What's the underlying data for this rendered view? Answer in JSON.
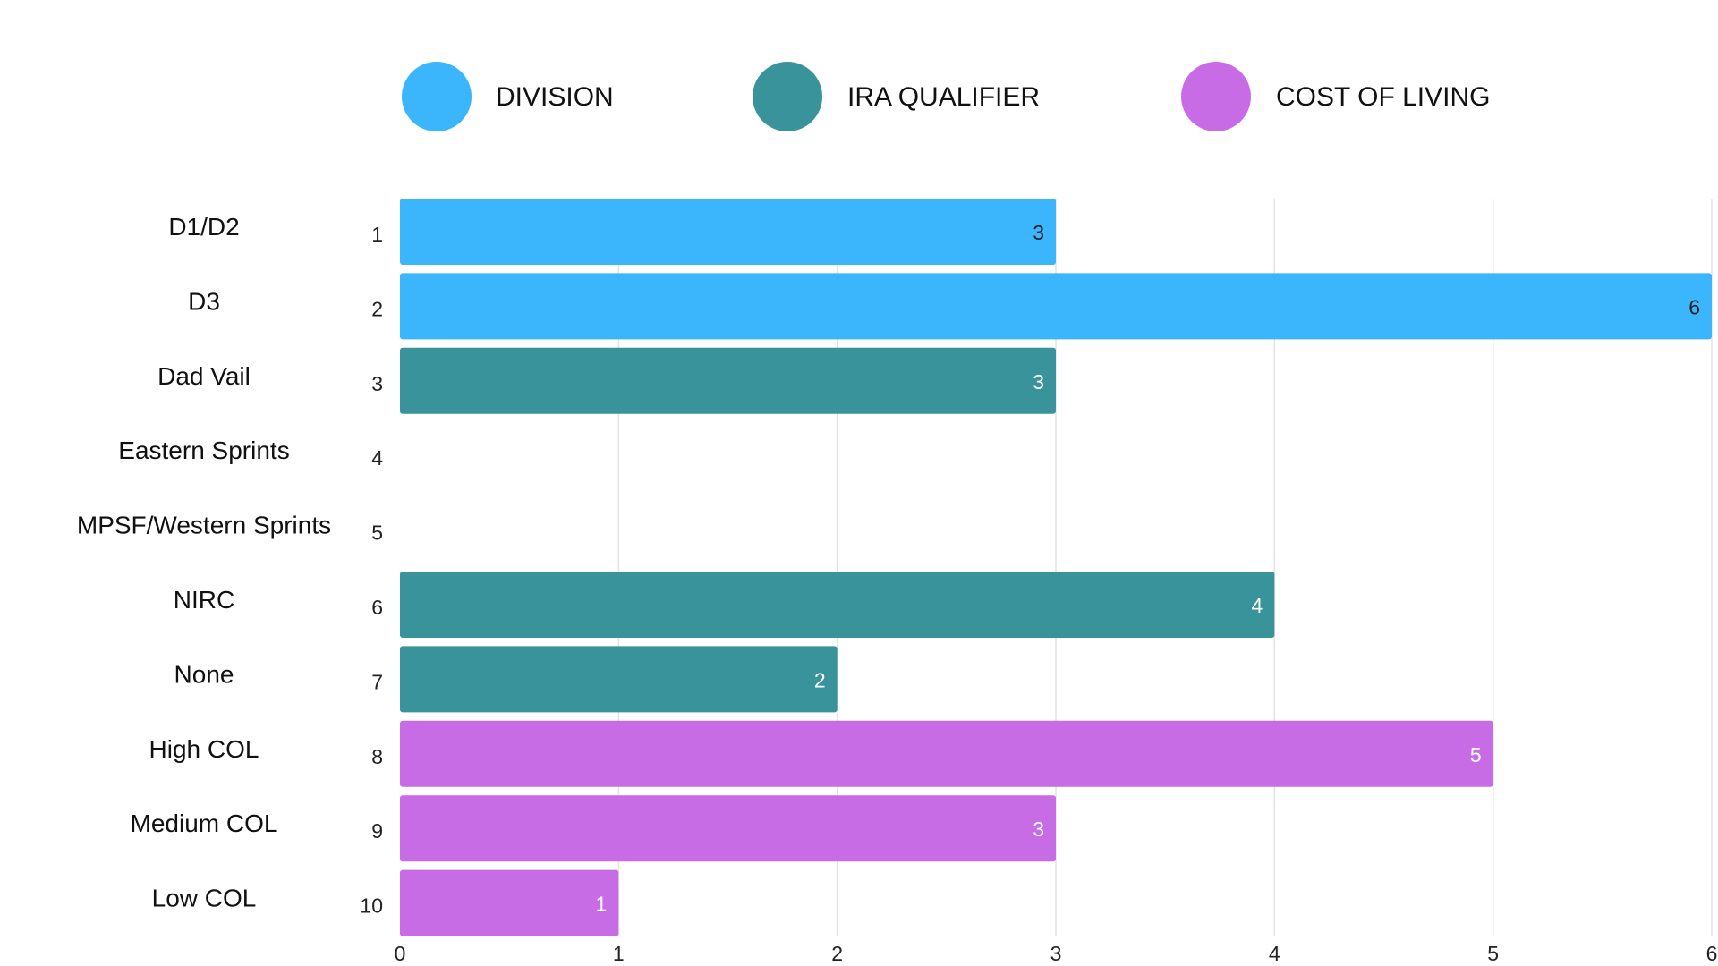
{
  "chart_data": {
    "type": "bar",
    "orientation": "horizontal",
    "legend": [
      {
        "name": "DIVISION",
        "color": "#3BB5FC"
      },
      {
        "name": "IRA QUALIFIER",
        "color": "#38939A"
      },
      {
        "name": "COST OF LIVING",
        "color": "#C86CE6"
      }
    ],
    "categories": [
      "D1/D2",
      "D3",
      "Dad Vail",
      "Eastern Sprints",
      "MPSF/Western Sprints",
      "NIRC",
      "None",
      "High COL",
      "Medium COL",
      "Low COL"
    ],
    "row_numbers": [
      "1",
      "2",
      "3",
      "4",
      "5",
      "6",
      "7",
      "8",
      "9",
      "10"
    ],
    "values": [
      3,
      6,
      3,
      0,
      0,
      4,
      2,
      5,
      3,
      1
    ],
    "series_index": [
      0,
      0,
      1,
      1,
      1,
      1,
      1,
      2,
      2,
      2
    ],
    "value_label_colors": [
      "#222222",
      "#222222",
      "#ffffff",
      "#ffffff",
      "#ffffff",
      "#ffffff",
      "#ffffff",
      "#ffffff",
      "#ffffff",
      "#ffffff"
    ],
    "xlim": [
      0,
      6
    ],
    "xticks": [
      0,
      1,
      2,
      3,
      4,
      5,
      6
    ],
    "grid": true,
    "grid_color": "#E3E3E3",
    "title": "",
    "xlabel": "",
    "ylabel": ""
  }
}
